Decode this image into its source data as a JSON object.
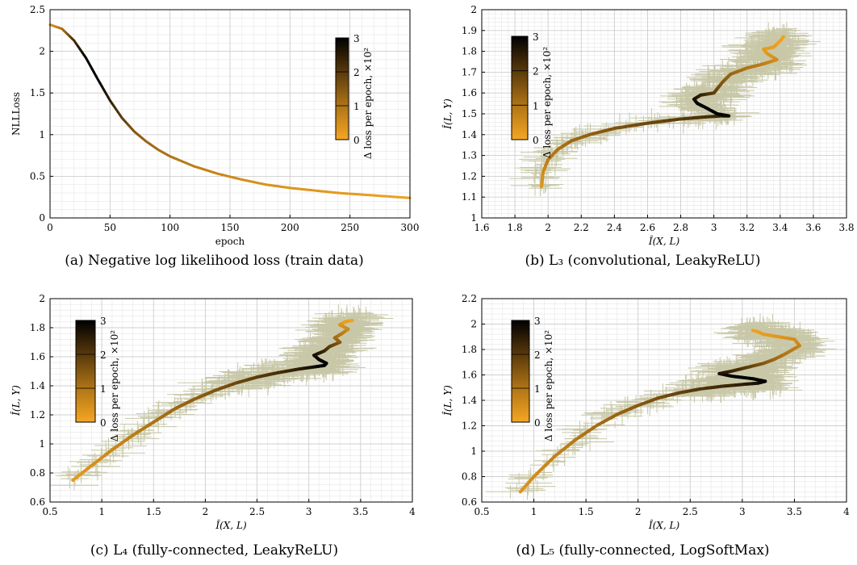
{
  "colorscale": {
    "low": "#f5a623",
    "mid": "#8a5a10",
    "high": "#000000",
    "errorbar_color": "#c8c8a8",
    "label": "Δ loss per epoch, ×10²",
    "ticks": [
      "0",
      "1",
      "2",
      "3"
    ]
  },
  "captions": {
    "a": "(a) Negative log likelihood loss (train data)",
    "b": "(b) L₃ (convolutional, LeakyReLU)",
    "c": "(c) L₄ (fully-connected, LeakyReLU)",
    "d": "(d) L₅ (fully-connected, LogSoftMax)"
  },
  "chart_data": [
    {
      "id": "a",
      "type": "line",
      "xlabel": "epoch",
      "ylabel": "NLLLoss",
      "xlim": [
        0,
        300
      ],
      "ylim": [
        0,
        2.5
      ],
      "xticks": [
        0,
        50,
        100,
        150,
        200,
        250,
        300
      ],
      "yticks": [
        0,
        0.5,
        1,
        1.5,
        2,
        2.5
      ],
      "xticklabels": [
        "0",
        "50",
        "100",
        "150",
        "200",
        "250",
        "300"
      ],
      "yticklabels": [
        "0",
        "0.5",
        "1",
        "1.5",
        "2",
        "2.5"
      ],
      "grid": true,
      "colorbar_placement": "top-right",
      "x": [
        0,
        10,
        20,
        30,
        40,
        50,
        60,
        70,
        80,
        90,
        100,
        120,
        140,
        160,
        180,
        200,
        220,
        240,
        260,
        280,
        300
      ],
      "y": [
        2.32,
        2.27,
        2.13,
        1.92,
        1.66,
        1.41,
        1.2,
        1.04,
        0.92,
        0.82,
        0.74,
        0.62,
        0.53,
        0.46,
        0.4,
        0.36,
        0.33,
        0.3,
        0.28,
        0.26,
        0.24
      ],
      "color_values": [
        0.3,
        1.0,
        2.2,
        3.0,
        3.0,
        2.5,
        2.0,
        1.6,
        1.3,
        1.1,
        1.0,
        0.8,
        0.65,
        0.5,
        0.4,
        0.35,
        0.3,
        0.25,
        0.2,
        0.15,
        0.1
      ]
    },
    {
      "id": "b",
      "type": "scatter",
      "xlabel": "Î(X, L)",
      "ylabel": "Î(L, Y)",
      "xlim": [
        1.6,
        3.8
      ],
      "ylim": [
        1,
        2
      ],
      "xticks": [
        1.6,
        1.8,
        2,
        2.2,
        2.4,
        2.6,
        2.8,
        3,
        3.2,
        3.4,
        3.6,
        3.8
      ],
      "yticks": [
        1,
        1.1,
        1.2,
        1.3,
        1.4,
        1.5,
        1.6,
        1.7,
        1.8,
        1.9,
        2
      ],
      "xticklabels": [
        "1.6",
        "1.8",
        "2",
        "2.2",
        "2.4",
        "2.6",
        "2.8",
        "3",
        "3.2",
        "3.4",
        "3.6",
        "3.8"
      ],
      "yticklabels": [
        "1",
        "1.1",
        "1.2",
        "1.3",
        "1.4",
        "1.5",
        "1.6",
        "1.7",
        "1.8",
        "1.9",
        "2"
      ],
      "grid": true,
      "colorbar_placement": "top-left",
      "x": [
        1.96,
        1.97,
        2.0,
        2.06,
        2.14,
        2.25,
        2.4,
        2.6,
        2.8,
        2.95,
        3.05,
        3.09,
        3.02,
        2.95,
        2.9,
        2.88,
        2.92,
        3.0,
        3.05,
        3.1,
        3.2,
        3.3,
        3.38,
        3.32,
        3.3,
        3.36,
        3.4,
        3.42
      ],
      "y": [
        1.15,
        1.22,
        1.28,
        1.33,
        1.37,
        1.4,
        1.43,
        1.455,
        1.475,
        1.485,
        1.49,
        1.49,
        1.5,
        1.53,
        1.55,
        1.57,
        1.59,
        1.6,
        1.65,
        1.69,
        1.72,
        1.74,
        1.76,
        1.79,
        1.81,
        1.82,
        1.85,
        1.87
      ],
      "color_values": [
        0.3,
        0.5,
        0.8,
        1.0,
        1.2,
        1.4,
        1.6,
        1.8,
        2.0,
        2.2,
        2.4,
        2.8,
        3.0,
        3.0,
        3.0,
        2.8,
        2.5,
        2.0,
        1.6,
        1.3,
        1.0,
        0.8,
        0.5,
        0.3,
        0.2,
        0.2,
        0.1,
        0.1
      ]
    },
    {
      "id": "c",
      "type": "scatter",
      "xlabel": "Î(X, L)",
      "ylabel": "Î(L, Y)",
      "xlim": [
        0.5,
        4
      ],
      "ylim": [
        0.6,
        2
      ],
      "xticks": [
        0.5,
        1,
        1.5,
        2,
        2.5,
        3,
        3.5,
        4
      ],
      "yticks": [
        0.6,
        0.8,
        1,
        1.2,
        1.4,
        1.6,
        1.8,
        2
      ],
      "xticklabels": [
        "0.5",
        "1",
        "1.5",
        "2",
        "2.5",
        "3",
        "3.5",
        "4"
      ],
      "yticklabels": [
        "0.6",
        "0.8",
        "1",
        "1.2",
        "1.4",
        "1.6",
        "1.8",
        "2"
      ],
      "grid": true,
      "colorbar_placement": "top-left",
      "x": [
        0.72,
        0.9,
        1.1,
        1.3,
        1.5,
        1.7,
        1.9,
        2.1,
        2.3,
        2.5,
        2.7,
        2.9,
        3.05,
        3.15,
        3.17,
        3.1,
        3.05,
        3.15,
        3.2,
        3.3,
        3.25,
        3.32,
        3.38,
        3.3,
        3.35,
        3.42
      ],
      "y": [
        0.75,
        0.85,
        0.96,
        1.06,
        1.15,
        1.24,
        1.31,
        1.37,
        1.42,
        1.46,
        1.49,
        1.515,
        1.53,
        1.54,
        1.555,
        1.58,
        1.61,
        1.64,
        1.67,
        1.7,
        1.73,
        1.76,
        1.79,
        1.82,
        1.84,
        1.85
      ],
      "color_values": [
        0.2,
        0.4,
        0.6,
        0.8,
        1.0,
        1.2,
        1.4,
        1.6,
        1.8,
        2.0,
        2.2,
        2.5,
        2.8,
        3.0,
        3.0,
        3.0,
        2.8,
        2.4,
        2.0,
        1.6,
        1.2,
        0.9,
        0.6,
        0.4,
        0.2,
        0.1
      ]
    },
    {
      "id": "d",
      "type": "scatter",
      "xlabel": "Î(X, L)",
      "ylabel": "Î(L, Y)",
      "xlim": [
        0.5,
        4
      ],
      "ylim": [
        0.6,
        2.2
      ],
      "xticks": [
        0.5,
        1,
        1.5,
        2,
        2.5,
        3,
        3.5,
        4
      ],
      "yticks": [
        0.6,
        0.8,
        1,
        1.2,
        1.4,
        1.6,
        1.8,
        2,
        2.2
      ],
      "xticklabels": [
        "0.5",
        "1",
        "1.5",
        "2",
        "2.5",
        "3",
        "3.5",
        "4"
      ],
      "yticklabels": [
        "0.6",
        "0.8",
        "1",
        "1.2",
        "1.4",
        "1.6",
        "1.8",
        "2",
        "2.2"
      ],
      "grid": true,
      "colorbar_placement": "top-left",
      "x": [
        0.87,
        1.0,
        1.2,
        1.4,
        1.6,
        1.8,
        2.0,
        2.2,
        2.4,
        2.6,
        2.8,
        3.0,
        3.15,
        3.22,
        3.1,
        2.9,
        2.78,
        2.9,
        3.05,
        3.2,
        3.3,
        3.4,
        3.55,
        3.5,
        3.35,
        3.2,
        3.15,
        3.1
      ],
      "y": [
        0.68,
        0.8,
        0.96,
        1.09,
        1.2,
        1.29,
        1.36,
        1.42,
        1.46,
        1.49,
        1.51,
        1.525,
        1.535,
        1.55,
        1.57,
        1.59,
        1.61,
        1.63,
        1.66,
        1.69,
        1.72,
        1.76,
        1.83,
        1.88,
        1.9,
        1.92,
        1.94,
        1.95
      ],
      "color_values": [
        0.3,
        0.5,
        0.7,
        0.9,
        1.1,
        1.3,
        1.5,
        1.7,
        1.9,
        2.1,
        2.3,
        2.5,
        2.7,
        3.0,
        3.0,
        3.0,
        2.8,
        2.4,
        2.0,
        1.6,
        1.3,
        1.0,
        0.7,
        0.5,
        0.3,
        0.2,
        0.15,
        0.1
      ]
    }
  ]
}
